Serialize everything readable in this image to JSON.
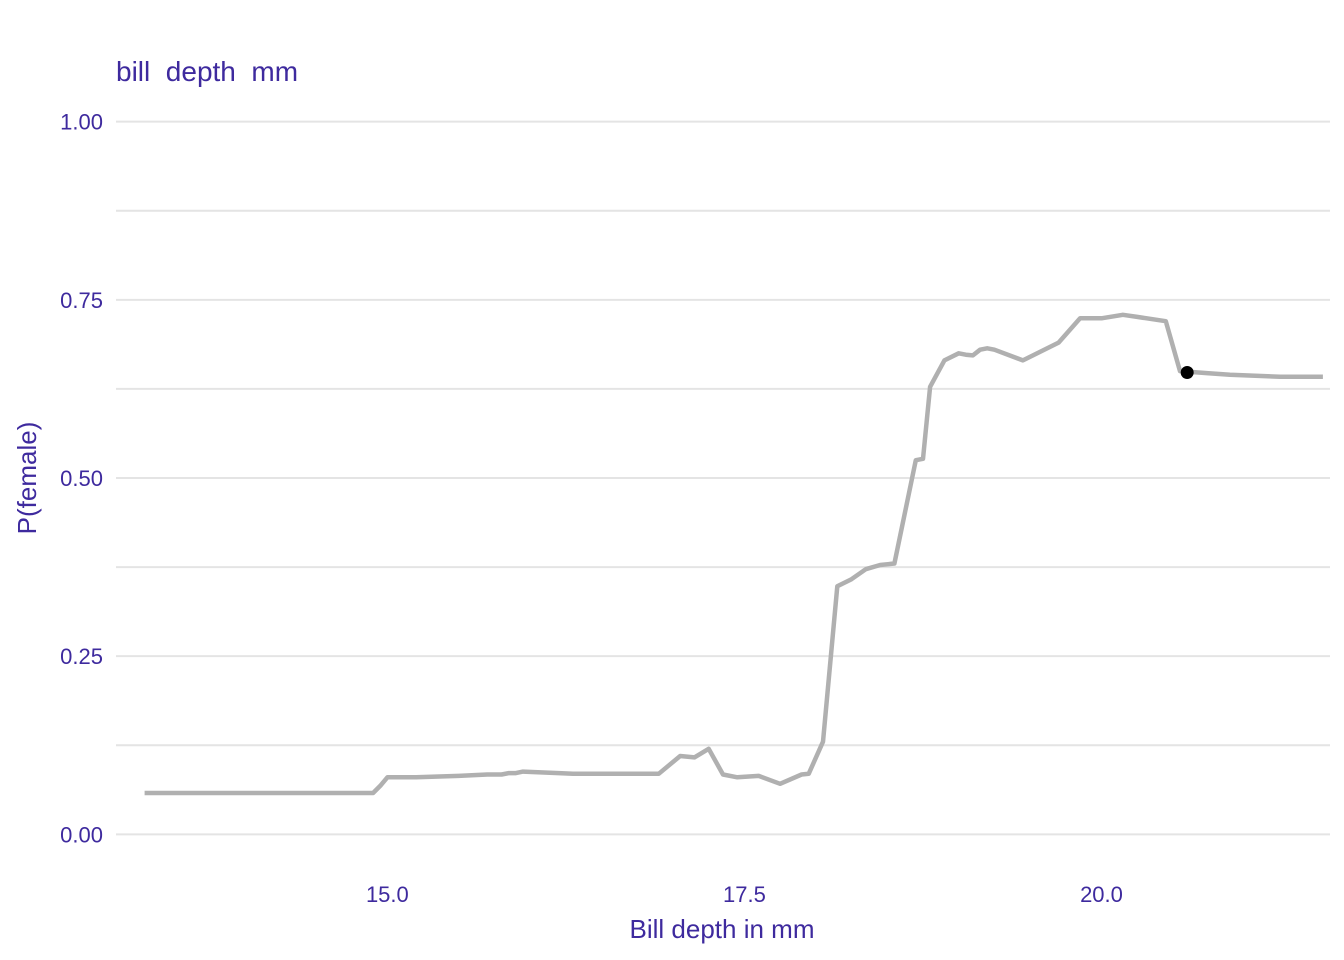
{
  "chart_data": {
    "type": "line",
    "title": "bill  depth  mm",
    "xlabel": "Bill depth in mm",
    "ylabel": "P(female)",
    "xlim": [
      13.1,
      21.6
    ],
    "ylim": [
      -0.05,
      1.05
    ],
    "x_ticks": [
      "15.0",
      "17.5",
      "20.0"
    ],
    "x_tick_values": [
      15.0,
      17.5,
      20.0
    ],
    "y_ticks": [
      "0.00",
      "0.25",
      "0.50",
      "0.75",
      "1.00"
    ],
    "y_tick_values": [
      0.0,
      0.25,
      0.5,
      0.75,
      1.0
    ],
    "y_minor_grid": [
      0.125,
      0.375,
      0.625,
      0.875
    ],
    "grid": true,
    "legend": "none",
    "colors": {
      "text": "#3e2a9e",
      "line": "#b0b0b0",
      "point": "#000000",
      "grid": "#e4e4e4"
    },
    "series": [
      {
        "x": [
          13.3,
          14.9,
          14.95,
          15.0,
          15.2,
          15.5,
          15.7,
          15.8,
          15.85,
          15.9,
          15.95,
          16.2,
          16.3,
          16.9,
          17.05,
          17.15,
          17.25,
          17.35,
          17.45,
          17.6,
          17.75,
          17.9,
          17.95,
          18.05,
          18.15,
          18.25,
          18.35,
          18.45,
          18.55,
          18.7,
          18.75,
          18.8,
          18.9,
          19.0,
          19.05,
          19.1,
          19.15,
          19.2,
          19.25,
          19.45,
          19.7,
          19.85,
          20.0,
          20.15,
          20.25,
          20.45,
          20.55,
          20.75,
          20.9,
          21.25,
          21.55
        ],
        "y": [
          0.058,
          0.058,
          0.068,
          0.08,
          0.08,
          0.082,
          0.084,
          0.084,
          0.086,
          0.086,
          0.088,
          0.086,
          0.085,
          0.085,
          0.11,
          0.108,
          0.12,
          0.084,
          0.08,
          0.082,
          0.071,
          0.084,
          0.085,
          0.13,
          0.348,
          0.358,
          0.372,
          0.378,
          0.38,
          0.525,
          0.527,
          0.628,
          0.665,
          0.675,
          0.673,
          0.672,
          0.68,
          0.682,
          0.68,
          0.665,
          0.69,
          0.724,
          0.724,
          0.729,
          0.726,
          0.72,
          0.65,
          0.647,
          0.645,
          0.642,
          0.642
        ]
      }
    ],
    "highlight_point": {
      "x": 20.6,
      "y": 0.648
    }
  }
}
